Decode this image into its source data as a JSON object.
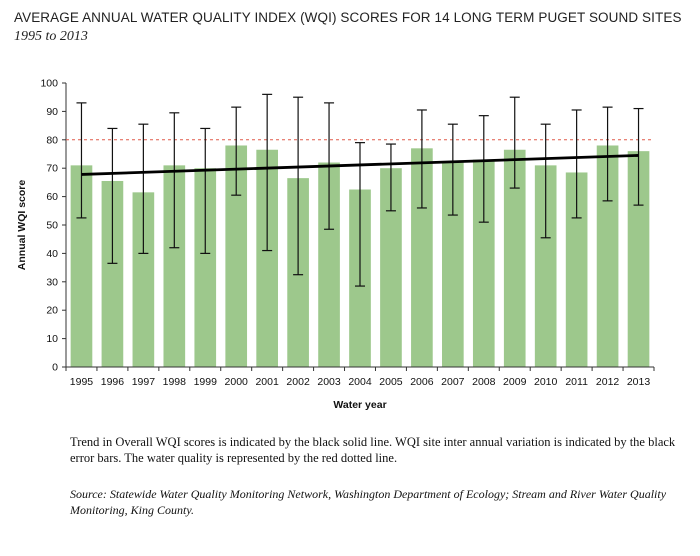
{
  "title": "AVERAGE ANNUAL WATER QUALITY INDEX (WQI) SCORES FOR 14 LONG TERM PUGET SOUND SITES",
  "subtitle": "1995 to 2013",
  "caption": "Trend in Overall WQI scores is indicated by the black solid line. WQI site inter annual variation is indicated by the black error bars. The water quality is represented by the red dotted line.",
  "source": "Source: Statewide Water Quality Monitoring Network, Washington Department of Ecology; Stream and River Water Quality Monitoring, King County.",
  "colors": {
    "bar": "#9dc88c",
    "error": "#111111",
    "trend": "#000000",
    "reference": "#e05a4a"
  },
  "chart_data": {
    "type": "bar",
    "xlabel": "Water year",
    "ylabel": "Annual WQI score",
    "ylim": [
      0,
      100
    ],
    "yticks": [
      0,
      10,
      20,
      30,
      40,
      50,
      60,
      70,
      80,
      90,
      100
    ],
    "grid": false,
    "categories": [
      "1995",
      "1996",
      "1997",
      "1998",
      "1999",
      "2000",
      "2001",
      "2002",
      "2003",
      "2004",
      "2005",
      "2006",
      "2007",
      "2008",
      "2009",
      "2010",
      "2011",
      "2012",
      "2013"
    ],
    "values": [
      71,
      65.5,
      61.5,
      71,
      70,
      78,
      76.5,
      66.5,
      72,
      62.5,
      70,
      77,
      72,
      73,
      76.5,
      71,
      68.5,
      78,
      76
    ],
    "error_low": [
      52.5,
      36.5,
      40,
      42,
      40,
      60.5,
      41,
      32.5,
      48.5,
      28.5,
      55,
      56,
      53.5,
      51,
      63,
      45.5,
      52.5,
      58.5,
      57
    ],
    "error_high": [
      93,
      84,
      85.5,
      89.5,
      84,
      91.5,
      96,
      95,
      93,
      79,
      78.5,
      90.5,
      85.5,
      88.5,
      95,
      85.5,
      90.5,
      91.5,
      91
    ],
    "trend_line": {
      "start": 67.8,
      "end": 74.5
    },
    "reference_line": 80
  }
}
